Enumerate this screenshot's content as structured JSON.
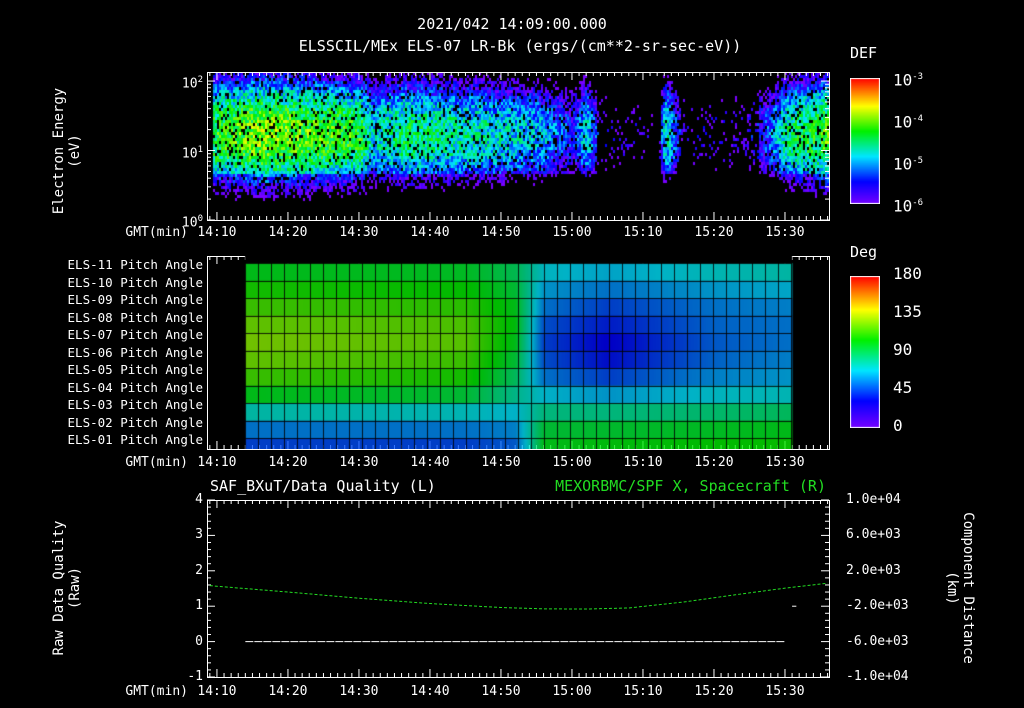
{
  "title": "2021/042 14:09:00.000",
  "time_axis": {
    "label": "GMT(min)",
    "ticks": [
      "14:10",
      "14:20",
      "14:30",
      "14:40",
      "14:50",
      "15:00",
      "15:10",
      "15:20",
      "15:30"
    ],
    "tick_minutes": [
      10,
      20,
      30,
      40,
      50,
      60,
      70,
      80,
      90
    ],
    "range_minutes": [
      8.6,
      96.2
    ]
  },
  "chart_data": [
    {
      "type": "heatmap",
      "title": "ELSSCIL/MEx ELS-07 LR-Bk  (ergs/(cm**2-sr-sec-eV))",
      "ylabel_line1": "Electron Energy",
      "ylabel_line2": "(eV)",
      "yscale": "log",
      "ylim": [
        1,
        135
      ],
      "yticks": [
        {
          "base": "10",
          "exp": "2",
          "v": 100
        },
        {
          "base": "10",
          "exp": "1",
          "v": 10
        },
        {
          "base": "10",
          "exp": "0",
          "v": 1
        }
      ],
      "colorbar": {
        "label": "DEF",
        "scale": "log",
        "range": [
          1e-06,
          0.001
        ],
        "ticks": [
          {
            "base": "10",
            "exp": "-3"
          },
          {
            "base": "10",
            "exp": "-4"
          },
          {
            "base": "10",
            "exp": "-5"
          },
          {
            "base": "10",
            "exp": "-6"
          }
        ]
      },
      "peak_log_def_profile": {
        "minutes": [
          9,
          12,
          16,
          20,
          25,
          30,
          32,
          36,
          42,
          50,
          56,
          60,
          62,
          64,
          66,
          68,
          72,
          73,
          76,
          80,
          84,
          88,
          90,
          94,
          96
        ],
        "values": [
          -4.3,
          -4.2,
          -4.0,
          -4.1,
          -4.2,
          -4.3,
          -4.8,
          -4.5,
          -4.6,
          -4.8,
          -5.0,
          -5.5,
          -4.8,
          -5.8,
          -6.0,
          -5.9,
          -6.2,
          -4.6,
          -6.0,
          -5.8,
          -5.9,
          -5.2,
          -4.6,
          -4.3,
          -4.2
        ]
      }
    },
    {
      "type": "heatmap",
      "ylabel": "",
      "colorbar": {
        "label": "Deg",
        "range": [
          0,
          180
        ],
        "ticks": [
          "180",
          "135",
          "90",
          "45",
          "0"
        ]
      },
      "rows": [
        "ELS-11 Pitch Angle",
        "ELS-10 Pitch Angle",
        "ELS-09 Pitch Angle",
        "ELS-08 Pitch Angle",
        "ELS-07 Pitch Angle",
        "ELS-06 Pitch Angle",
        "ELS-05 Pitch Angle",
        "ELS-04 Pitch Angle",
        "ELS-03 Pitch Angle",
        "ELS-02 Pitch Angle",
        "ELS-01 Pitch Angle"
      ],
      "data_minutes": [
        14,
        91
      ],
      "keyframes": [
        {
          "minute": 14,
          "angles": [
            100,
            108,
            115,
            122,
            125,
            122,
            115,
            100,
            75,
            55,
            45
          ]
        },
        {
          "minute": 45,
          "angles": [
            98,
            105,
            112,
            118,
            120,
            115,
            108,
            95,
            72,
            55,
            45
          ]
        },
        {
          "minute": 52,
          "angles": [
            90,
            95,
            100,
            102,
            100,
            95,
            88,
            80,
            68,
            58,
            50
          ]
        },
        {
          "minute": 56,
          "angles": [
            70,
            62,
            55,
            48,
            45,
            48,
            55,
            68,
            82,
            95,
            100
          ]
        },
        {
          "minute": 65,
          "angles": [
            65,
            55,
            45,
            38,
            32,
            35,
            45,
            62,
            82,
            96,
            102
          ]
        },
        {
          "minute": 80,
          "angles": [
            72,
            62,
            55,
            52,
            50,
            52,
            58,
            70,
            85,
            98,
            104
          ]
        },
        {
          "minute": 91,
          "angles": [
            75,
            66,
            58,
            55,
            55,
            58,
            62,
            72,
            88,
            100,
            106
          ]
        }
      ]
    },
    {
      "type": "line",
      "title_left": "SAF_BXuT/Data Quality (L)",
      "title_right": "MEXORBMC/SPF X, Spacecraft (R)",
      "ylabel_left_line1": "Raw Data Quality",
      "ylabel_left_line2": "(Raw)",
      "ylim_left": [
        -1,
        4
      ],
      "yticks_left": [
        "4",
        "3",
        "2",
        "1",
        "0",
        "-1"
      ],
      "ylabel_right_line1": "Component Distance",
      "ylabel_right_line2": "(km)",
      "ylim_right": [
        -10000,
        10000
      ],
      "yticks_right": [
        "1.0e+04",
        "6.0e+03",
        "2.0e+03",
        "-2.0e+03",
        "-6.0e+03",
        "-1.0e+04"
      ],
      "series": [
        {
          "name": "Data Quality",
          "color": "#ffffff",
          "axis": "left",
          "x": [
            14,
            90,
            91,
            91.6
          ],
          "y": [
            0,
            0,
            1,
            1
          ]
        },
        {
          "name": "MEXORBMC/SPF X, Spacecraft",
          "color": "#22dd22",
          "axis": "right",
          "x": [
            9,
            20,
            30,
            40,
            50,
            56,
            62,
            68,
            76,
            84,
            90,
            96
          ],
          "y": [
            320,
            -400,
            -1100,
            -1700,
            -2150,
            -2300,
            -2320,
            -2200,
            -1500,
            -600,
            40,
            600
          ]
        }
      ]
    }
  ]
}
